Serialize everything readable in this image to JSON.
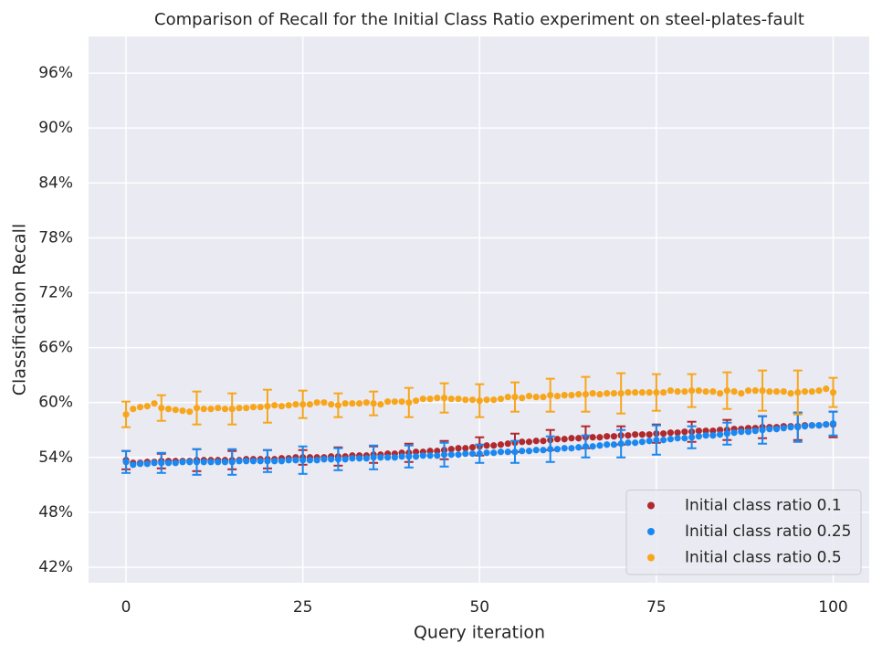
{
  "chart_data": {
    "type": "scatter",
    "title": "Comparison of Recall for the Initial Class Ratio experiment on steel-plates-fault",
    "x_label": "Query iteration",
    "y_label": "Classification Recall",
    "x": [
      0,
      1,
      2,
      3,
      4,
      5,
      6,
      7,
      8,
      9,
      10,
      11,
      12,
      13,
      14,
      15,
      16,
      17,
      18,
      19,
      20,
      21,
      22,
      23,
      24,
      25,
      26,
      27,
      28,
      29,
      30,
      31,
      32,
      33,
      34,
      35,
      36,
      37,
      38,
      39,
      40,
      41,
      42,
      43,
      44,
      45,
      46,
      47,
      48,
      49,
      50,
      51,
      52,
      53,
      54,
      55,
      56,
      57,
      58,
      59,
      60,
      61,
      62,
      63,
      64,
      65,
      66,
      67,
      68,
      69,
      70,
      71,
      72,
      73,
      74,
      75,
      76,
      77,
      78,
      79,
      80,
      81,
      82,
      83,
      84,
      85,
      86,
      87,
      88,
      89,
      90,
      91,
      92,
      93,
      94,
      95,
      96,
      97,
      98,
      99,
      100
    ],
    "error_x": [
      0,
      5,
      10,
      15,
      20,
      25,
      30,
      35,
      40,
      45,
      50,
      55,
      60,
      65,
      70,
      75,
      80,
      85,
      90,
      95,
      100
    ],
    "series": [
      {
        "name": "Initial class ratio 0.1",
        "color": "#b0292d",
        "values": [
          53.7,
          53.4,
          53.4,
          53.5,
          53.5,
          53.6,
          53.6,
          53.6,
          53.6,
          53.6,
          53.7,
          53.7,
          53.7,
          53.7,
          53.7,
          53.7,
          53.7,
          53.8,
          53.8,
          53.8,
          53.8,
          53.8,
          53.9,
          53.9,
          54.0,
          54.0,
          54.0,
          54.0,
          54.0,
          54.1,
          54.1,
          54.1,
          54.2,
          54.2,
          54.2,
          54.3,
          54.3,
          54.4,
          54.4,
          54.5,
          54.5,
          54.6,
          54.6,
          54.7,
          54.7,
          54.8,
          54.9,
          55.0,
          55.0,
          55.1,
          55.2,
          55.3,
          55.3,
          55.4,
          55.5,
          55.6,
          55.7,
          55.7,
          55.8,
          55.8,
          55.9,
          56.0,
          56.0,
          56.1,
          56.1,
          56.2,
          56.2,
          56.2,
          56.3,
          56.3,
          56.4,
          56.4,
          56.5,
          56.5,
          56.5,
          56.6,
          56.6,
          56.7,
          56.7,
          56.8,
          56.8,
          56.9,
          56.9,
          56.9,
          57.0,
          57.0,
          57.1,
          57.1,
          57.2,
          57.2,
          57.3,
          57.3,
          57.3,
          57.4,
          57.4,
          57.4,
          57.5,
          57.5,
          57.5,
          57.6,
          57.6
        ],
        "errors": [
          1.0,
          0.8,
          1.2,
          1.0,
          1.0,
          0.8,
          1.0,
          0.9,
          1.0,
          1.0,
          1.0,
          1.0,
          1.1,
          1.2,
          1.0,
          1.0,
          1.1,
          1.1,
          1.2,
          1.5,
          1.4
        ]
      },
      {
        "name": "Initial class ratio 0.25",
        "color": "#1a88f0",
        "values": [
          53.5,
          53.2,
          53.3,
          53.3,
          53.4,
          53.4,
          53.4,
          53.4,
          53.5,
          53.5,
          53.5,
          53.5,
          53.5,
          53.5,
          53.5,
          53.5,
          53.6,
          53.6,
          53.6,
          53.6,
          53.6,
          53.6,
          53.6,
          53.7,
          53.7,
          53.7,
          53.7,
          53.7,
          53.8,
          53.8,
          53.8,
          53.8,
          53.9,
          53.9,
          53.9,
          54.0,
          54.0,
          54.0,
          54.0,
          54.1,
          54.1,
          54.1,
          54.2,
          54.2,
          54.2,
          54.3,
          54.3,
          54.3,
          54.4,
          54.4,
          54.4,
          54.5,
          54.5,
          54.6,
          54.6,
          54.6,
          54.7,
          54.7,
          54.8,
          54.8,
          54.9,
          54.9,
          55.0,
          55.0,
          55.1,
          55.2,
          55.2,
          55.3,
          55.4,
          55.4,
          55.5,
          55.6,
          55.6,
          55.7,
          55.8,
          55.9,
          55.9,
          56.0,
          56.1,
          56.1,
          56.2,
          56.3,
          56.4,
          56.4,
          56.5,
          56.6,
          56.7,
          56.8,
          56.8,
          56.9,
          57.0,
          57.1,
          57.1,
          57.2,
          57.3,
          57.3,
          57.4,
          57.5,
          57.5,
          57.6,
          57.7
        ],
        "errors": [
          1.2,
          1.1,
          1.4,
          1.4,
          1.2,
          1.5,
          1.2,
          1.3,
          1.2,
          1.3,
          1.0,
          1.2,
          1.4,
          1.2,
          1.5,
          1.6,
          1.2,
          1.2,
          1.5,
          1.6,
          1.3
        ]
      },
      {
        "name": "Initial class ratio 0.5",
        "color": "#f7a61c",
        "values": [
          58.7,
          59.3,
          59.5,
          59.6,
          59.9,
          59.4,
          59.3,
          59.2,
          59.1,
          59.0,
          59.4,
          59.3,
          59.3,
          59.4,
          59.3,
          59.3,
          59.4,
          59.4,
          59.5,
          59.5,
          59.6,
          59.7,
          59.6,
          59.7,
          59.8,
          59.8,
          59.8,
          60.0,
          60.0,
          59.8,
          59.7,
          59.9,
          59.9,
          59.9,
          60.0,
          59.9,
          59.8,
          60.1,
          60.1,
          60.1,
          60.0,
          60.2,
          60.4,
          60.4,
          60.5,
          60.5,
          60.4,
          60.4,
          60.3,
          60.3,
          60.2,
          60.3,
          60.3,
          60.4,
          60.6,
          60.6,
          60.5,
          60.7,
          60.6,
          60.6,
          60.8,
          60.7,
          60.8,
          60.8,
          60.9,
          60.9,
          61.0,
          60.9,
          61.0,
          61.0,
          61.0,
          61.1,
          61.1,
          61.1,
          61.1,
          61.1,
          61.1,
          61.3,
          61.2,
          61.2,
          61.3,
          61.3,
          61.2,
          61.2,
          61.0,
          61.3,
          61.2,
          61.0,
          61.3,
          61.3,
          61.3,
          61.2,
          61.2,
          61.2,
          61.0,
          61.1,
          61.2,
          61.2,
          61.3,
          61.5,
          61.1
        ],
        "errors": [
          1.4,
          1.4,
          1.8,
          1.7,
          1.8,
          1.5,
          1.3,
          1.3,
          1.6,
          1.6,
          1.8,
          1.6,
          1.8,
          1.9,
          2.2,
          2.0,
          1.8,
          2.0,
          2.2,
          2.4,
          1.6
        ]
      }
    ],
    "xlim": [
      -5.3,
      105.1
    ],
    "ylim": [
      40.3,
      100
    ],
    "xticks": [
      0,
      25,
      50,
      75,
      100
    ],
    "yticks": [
      {
        "value": 42,
        "label": "42%"
      },
      {
        "value": 48,
        "label": "48%"
      },
      {
        "value": 54,
        "label": "54%"
      },
      {
        "value": 60,
        "label": "60%"
      },
      {
        "value": 66,
        "label": "66%"
      },
      {
        "value": 72,
        "label": "72%"
      },
      {
        "value": 78,
        "label": "78%"
      },
      {
        "value": 84,
        "label": "84%"
      },
      {
        "value": 90,
        "label": "90%"
      },
      {
        "value": 96,
        "label": "96%"
      }
    ],
    "grid": true,
    "legend": "lower right"
  }
}
